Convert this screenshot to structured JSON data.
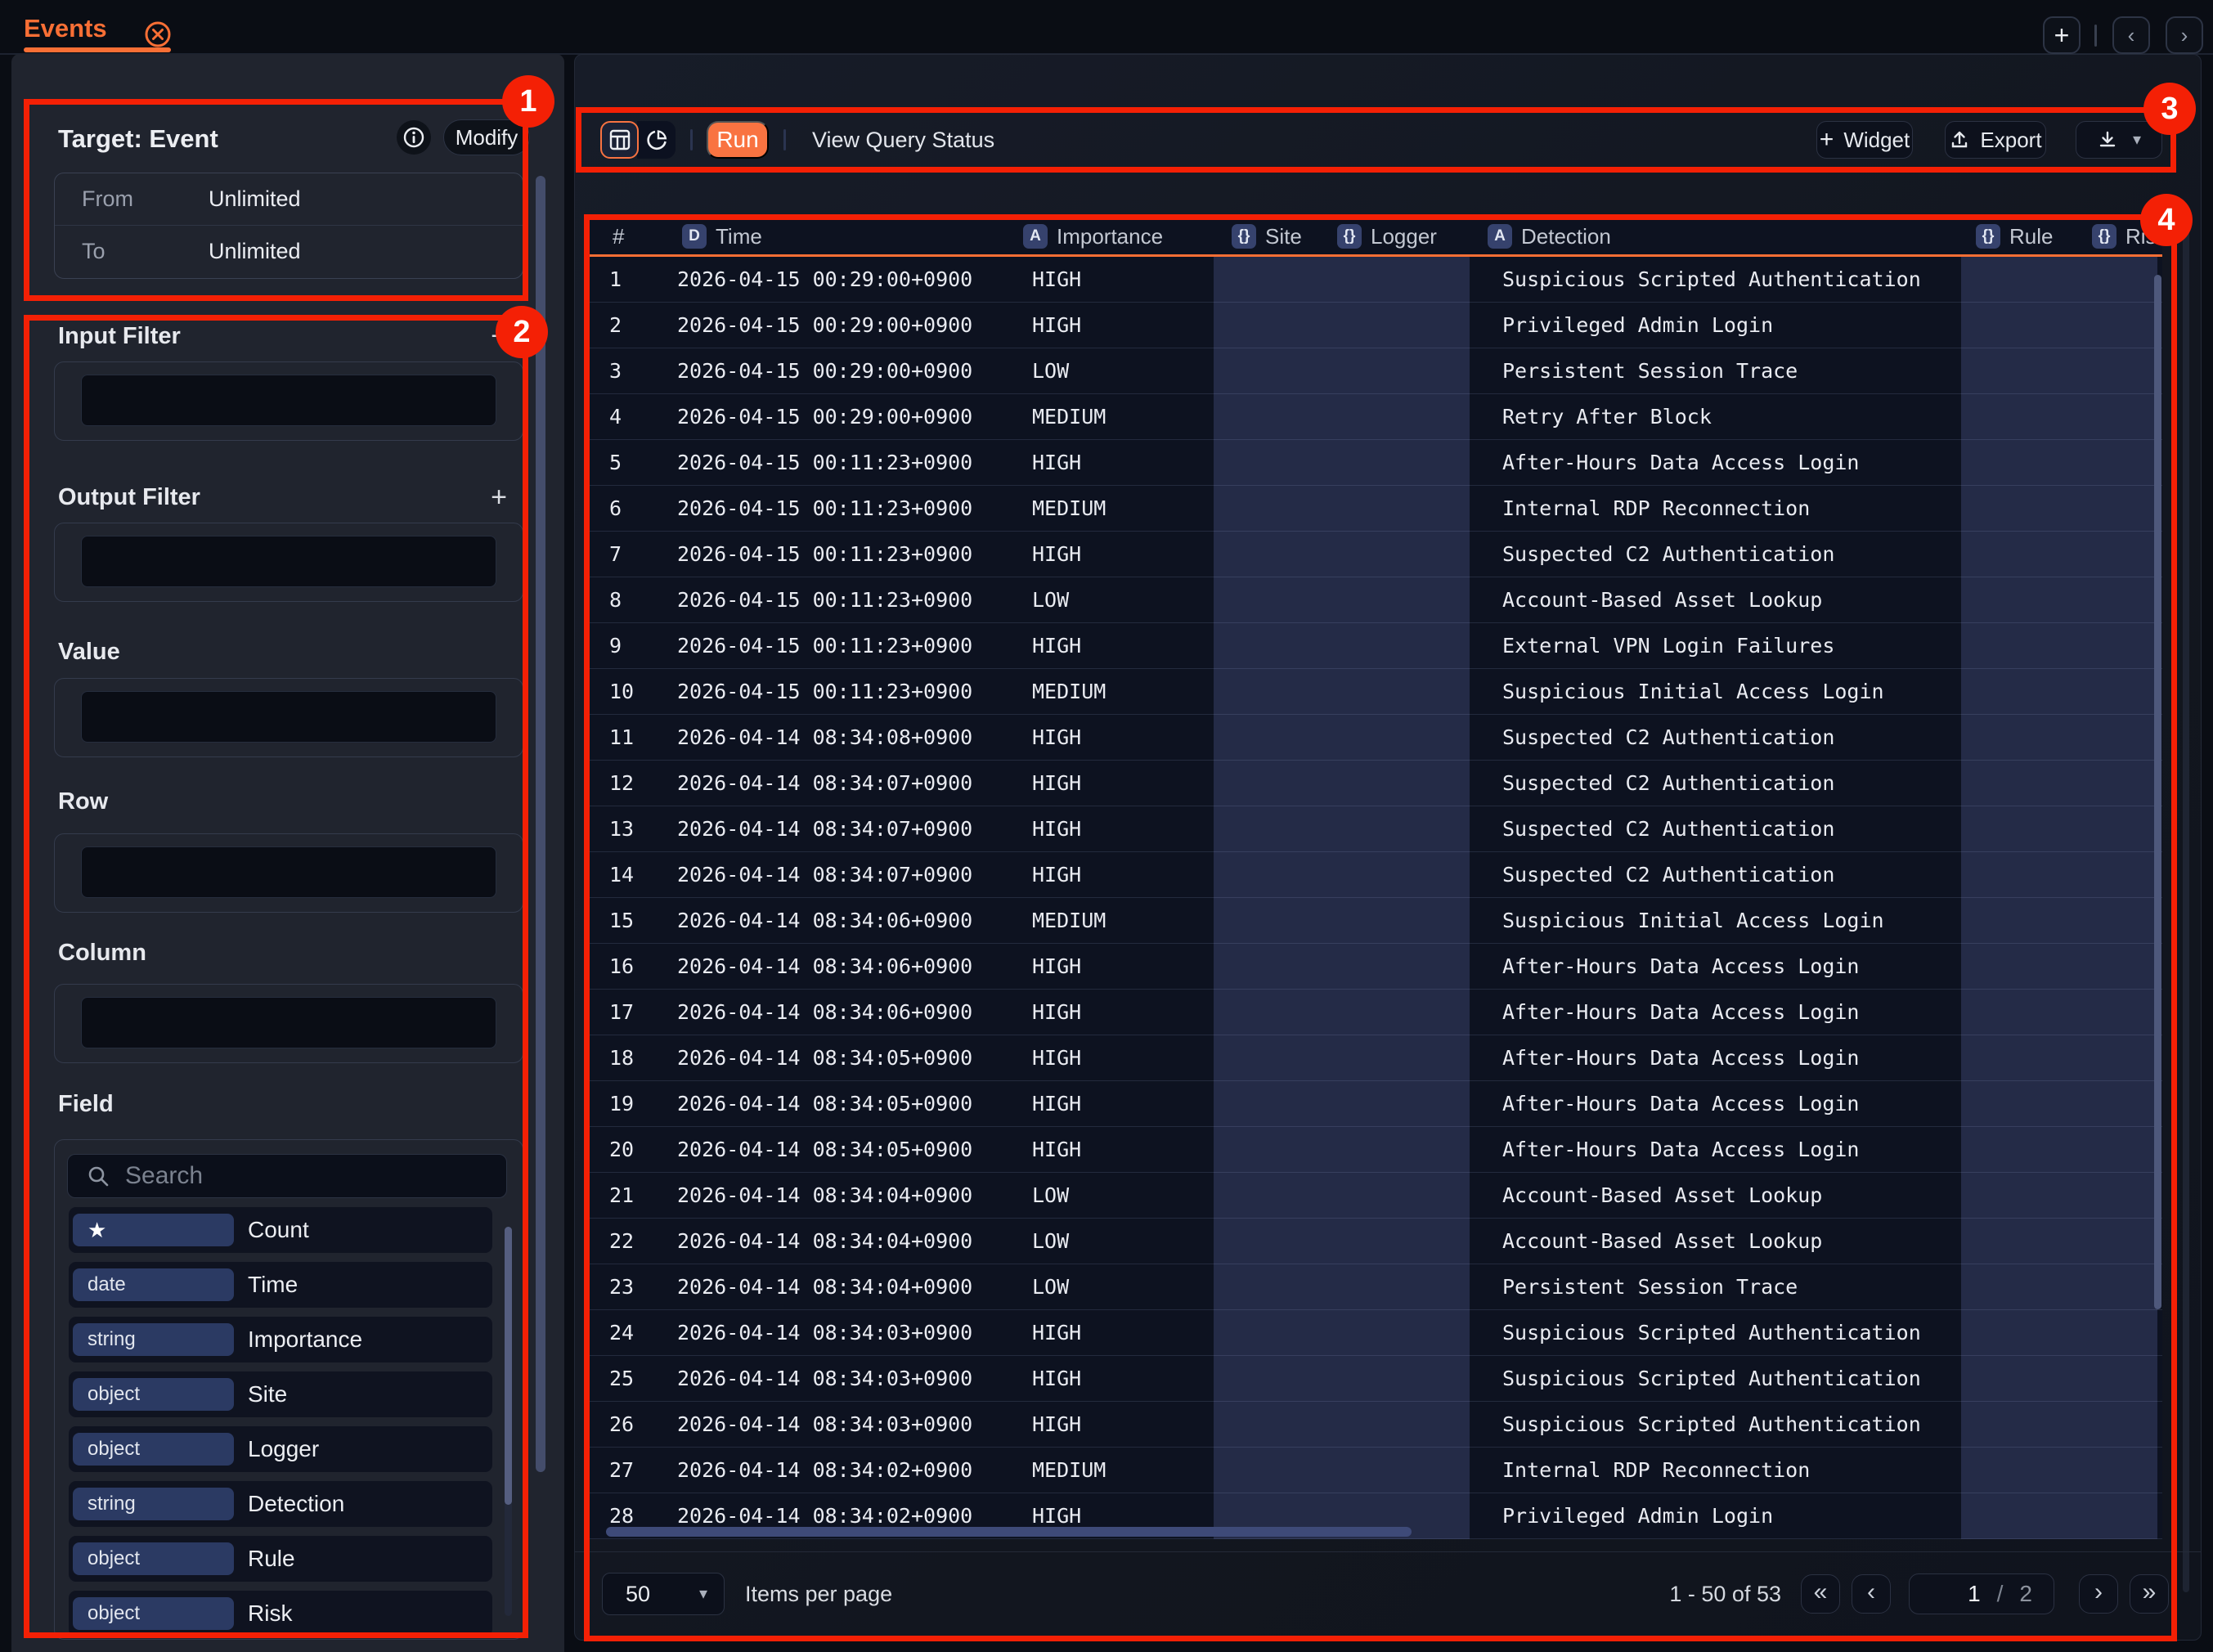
{
  "topbar": {
    "tab_label": "Events"
  },
  "sidebar": {
    "target": {
      "title": "Target: Event",
      "modify_label": "Modify",
      "rows": [
        {
          "label": "From",
          "value": "Unlimited"
        },
        {
          "label": "To",
          "value": "Unlimited"
        }
      ]
    },
    "sections": [
      {
        "label": "Input Filter",
        "add_icon": "+"
      },
      {
        "label": "Output Filter",
        "add_icon": "+"
      },
      {
        "label": "Value"
      },
      {
        "label": "Row"
      },
      {
        "label": "Column"
      }
    ],
    "field_section": {
      "label": "Field",
      "search_placeholder": "Search",
      "fields": [
        {
          "type": "★",
          "label": "Count"
        },
        {
          "type": "date",
          "label": "Time"
        },
        {
          "type": "string",
          "label": "Importance"
        },
        {
          "type": "object",
          "label": "Site"
        },
        {
          "type": "object",
          "label": "Logger"
        },
        {
          "type": "string",
          "label": "Detection"
        },
        {
          "type": "object",
          "label": "Rule"
        },
        {
          "type": "object",
          "label": "Risk"
        }
      ]
    }
  },
  "toolbar": {
    "run_label": "Run",
    "status_label": "View Query Status",
    "widget_label": "Widget",
    "export_label": "Export"
  },
  "table": {
    "columns": [
      {
        "label": "#"
      },
      {
        "badge": "D",
        "label": "Time"
      },
      {
        "badge": "A",
        "label": "Importance"
      },
      {
        "badge": "{}",
        "label": "Site"
      },
      {
        "badge": "{}",
        "label": "Logger"
      },
      {
        "badge": "A",
        "label": "Detection"
      },
      {
        "badge": "{}",
        "label": "Rule"
      },
      {
        "badge": "{}",
        "label": "Risk"
      }
    ],
    "rows": [
      {
        "n": "1",
        "time": "2026-04-15 00:29:00+0900",
        "importance": "HIGH",
        "detection": "Suspicious Scripted Authentication"
      },
      {
        "n": "2",
        "time": "2026-04-15 00:29:00+0900",
        "importance": "HIGH",
        "detection": "Privileged Admin Login"
      },
      {
        "n": "3",
        "time": "2026-04-15 00:29:00+0900",
        "importance": "LOW",
        "detection": "Persistent Session Trace"
      },
      {
        "n": "4",
        "time": "2026-04-15 00:29:00+0900",
        "importance": "MEDIUM",
        "detection": "Retry After Block"
      },
      {
        "n": "5",
        "time": "2026-04-15 00:11:23+0900",
        "importance": "HIGH",
        "detection": "After-Hours Data Access Login"
      },
      {
        "n": "6",
        "time": "2026-04-15 00:11:23+0900",
        "importance": "MEDIUM",
        "detection": "Internal RDP Reconnection"
      },
      {
        "n": "7",
        "time": "2026-04-15 00:11:23+0900",
        "importance": "HIGH",
        "detection": "Suspected C2 Authentication"
      },
      {
        "n": "8",
        "time": "2026-04-15 00:11:23+0900",
        "importance": "LOW",
        "detection": "Account-Based Asset Lookup"
      },
      {
        "n": "9",
        "time": "2026-04-15 00:11:23+0900",
        "importance": "HIGH",
        "detection": "External VPN Login Failures"
      },
      {
        "n": "10",
        "time": "2026-04-15 00:11:23+0900",
        "importance": "MEDIUM",
        "detection": "Suspicious Initial Access Login"
      },
      {
        "n": "11",
        "time": "2026-04-14 08:34:08+0900",
        "importance": "HIGH",
        "detection": "Suspected C2 Authentication"
      },
      {
        "n": "12",
        "time": "2026-04-14 08:34:07+0900",
        "importance": "HIGH",
        "detection": "Suspected C2 Authentication"
      },
      {
        "n": "13",
        "time": "2026-04-14 08:34:07+0900",
        "importance": "HIGH",
        "detection": "Suspected C2 Authentication"
      },
      {
        "n": "14",
        "time": "2026-04-14 08:34:07+0900",
        "importance": "HIGH",
        "detection": "Suspected C2 Authentication"
      },
      {
        "n": "15",
        "time": "2026-04-14 08:34:06+0900",
        "importance": "MEDIUM",
        "detection": "Suspicious Initial Access Login"
      },
      {
        "n": "16",
        "time": "2026-04-14 08:34:06+0900",
        "importance": "HIGH",
        "detection": "After-Hours Data Access Login"
      },
      {
        "n": "17",
        "time": "2026-04-14 08:34:06+0900",
        "importance": "HIGH",
        "detection": "After-Hours Data Access Login"
      },
      {
        "n": "18",
        "time": "2026-04-14 08:34:05+0900",
        "importance": "HIGH",
        "detection": "After-Hours Data Access Login"
      },
      {
        "n": "19",
        "time": "2026-04-14 08:34:05+0900",
        "importance": "HIGH",
        "detection": "After-Hours Data Access Login"
      },
      {
        "n": "20",
        "time": "2026-04-14 08:34:05+0900",
        "importance": "HIGH",
        "detection": "After-Hours Data Access Login"
      },
      {
        "n": "21",
        "time": "2026-04-14 08:34:04+0900",
        "importance": "LOW",
        "detection": "Account-Based Asset Lookup"
      },
      {
        "n": "22",
        "time": "2026-04-14 08:34:04+0900",
        "importance": "LOW",
        "detection": "Account-Based Asset Lookup"
      },
      {
        "n": "23",
        "time": "2026-04-14 08:34:04+0900",
        "importance": "LOW",
        "detection": "Persistent Session Trace"
      },
      {
        "n": "24",
        "time": "2026-04-14 08:34:03+0900",
        "importance": "HIGH",
        "detection": "Suspicious Scripted Authentication"
      },
      {
        "n": "25",
        "time": "2026-04-14 08:34:03+0900",
        "importance": "HIGH",
        "detection": "Suspicious Scripted Authentication"
      },
      {
        "n": "26",
        "time": "2026-04-14 08:34:03+0900",
        "importance": "HIGH",
        "detection": "Suspicious Scripted Authentication"
      },
      {
        "n": "27",
        "time": "2026-04-14 08:34:02+0900",
        "importance": "MEDIUM",
        "detection": "Internal RDP Reconnection"
      },
      {
        "n": "28",
        "time": "2026-04-14 08:34:02+0900",
        "importance": "HIGH",
        "detection": "Privileged Admin Login"
      }
    ]
  },
  "footer": {
    "page_size": "50",
    "items_per_page": "Items per page",
    "range": "1 - 50 of 53",
    "page_current": "1",
    "page_separator": "/",
    "page_total": "2"
  },
  "annotations": {
    "badges": [
      "1",
      "2",
      "3",
      "4"
    ]
  },
  "colors": {
    "accent_orange": "#f96f35",
    "annotation_red": "#f42005",
    "band_navy": "#242b47",
    "sidebar_bg": "#20242e",
    "page_bg": "#0a0d14"
  }
}
